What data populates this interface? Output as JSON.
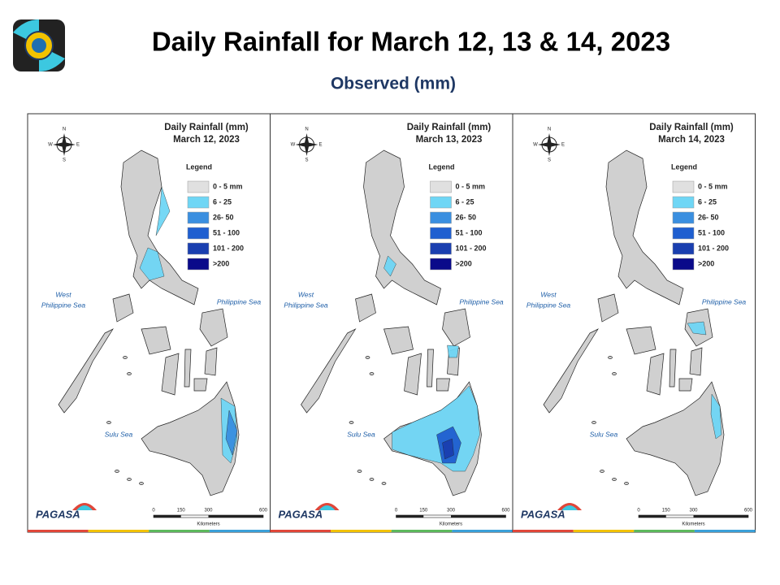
{
  "header": {
    "title": "Daily Rainfall for March 12, 13 & 14, 2023",
    "subtitle": "Observed (mm)"
  },
  "panels": [
    {
      "title": "Daily Rainfall (mm)",
      "date": "March 12, 2023"
    },
    {
      "title": "Daily Rainfall (mm)",
      "date": "March 13, 2023"
    },
    {
      "title": "Daily Rainfall (mm)",
      "date": "March 14, 2023"
    }
  ],
  "legend": {
    "title": "Legend",
    "items": [
      "0 - 5 mm",
      "6 - 25",
      "26- 50",
      "51 - 100",
      "101 - 200",
      ">200"
    ],
    "colors": [
      "#e0e0e0",
      "#6fd6f5",
      "#3a8fe0",
      "#1f5fd0",
      "#1a3fb0",
      "#0a0a8a"
    ]
  },
  "sea_labels": {
    "west": [
      "West",
      "Philippine Sea"
    ],
    "east": "Philippine Sea",
    "south": "Sulu Sea"
  },
  "compass": {
    "n": "N",
    "e": "E",
    "s": "S",
    "w": "W"
  },
  "scale": {
    "ticks": [
      0,
      150,
      300,
      600
    ],
    "unit": "Kilometers"
  },
  "logo": {
    "brand": "PAGASA"
  }
}
